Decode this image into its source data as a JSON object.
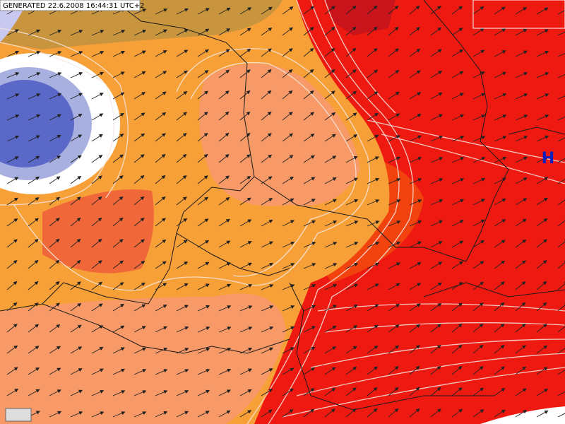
{
  "header": {
    "generated": "GENERATED 22.6.2008 16:44:31 UTC+2"
  },
  "labels": {
    "high_pressure": "H"
  }
}
